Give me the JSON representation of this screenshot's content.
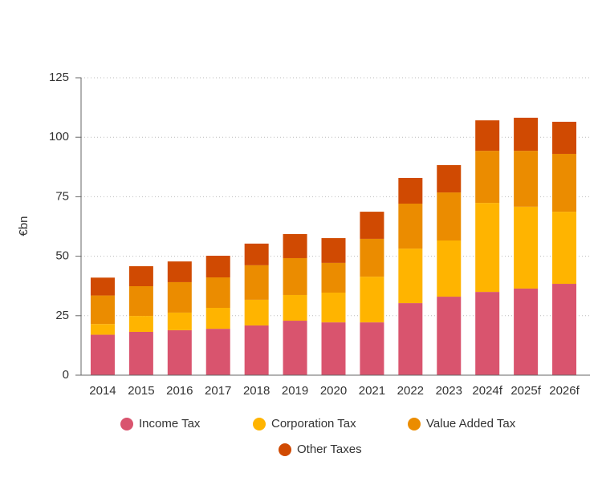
{
  "chart_data": {
    "type": "stacked_bar",
    "y_label": "€bn",
    "categories": [
      "2014",
      "2015",
      "2016",
      "2017",
      "2018",
      "2019",
      "2020",
      "2021",
      "2022",
      "2023",
      "2024f",
      "2025f",
      "2026f"
    ],
    "series": [
      {
        "name": "Income Tax",
        "color": "#d9546e",
        "values": [
          17,
          18.2,
          18.9,
          19.5,
          20.9,
          22.9,
          22.2,
          22.2,
          30.3,
          33,
          35,
          36.4,
          38.4
        ]
      },
      {
        "name": "Corporation Tax",
        "color": "#ffb400",
        "values": [
          4.5,
          6.7,
          7.4,
          8.8,
          10.8,
          10.8,
          12.5,
          19.2,
          22.9,
          23.6,
          37.4,
          34.4,
          30.3
        ]
      },
      {
        "name": "Value Added Tax",
        "color": "#eb8c00",
        "values": [
          12,
          12.5,
          12.8,
          12.8,
          14.5,
          15.5,
          12.5,
          15.9,
          18.9,
          20.2,
          21.9,
          23.5,
          24.3
        ]
      },
      {
        "name": "Other Taxes",
        "color": "#d04a02",
        "values": [
          7.5,
          8.4,
          8.7,
          9.1,
          9.1,
          10.1,
          10.4,
          11.4,
          10.8,
          11.5,
          12.8,
          13.9,
          13.5
        ]
      }
    ],
    "ylim": [
      0,
      125
    ],
    "yticks": [
      0,
      25,
      50,
      75,
      100,
      125
    ],
    "grid": true
  }
}
